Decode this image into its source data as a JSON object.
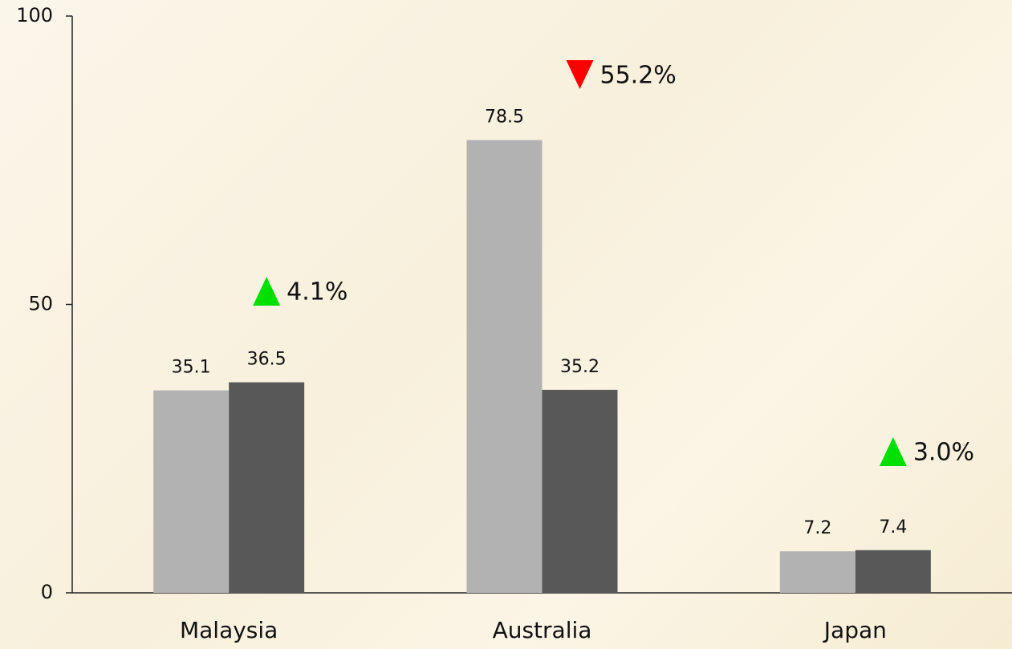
{
  "chart_data": {
    "type": "bar",
    "categories": [
      "Malaysia",
      "Australia",
      "Japan"
    ],
    "series": [
      {
        "color": "#b2b2b2",
        "values": [
          35.1,
          78.5,
          7.2
        ]
      },
      {
        "color": "#585858",
        "values": [
          36.5,
          35.2,
          7.4
        ]
      }
    ],
    "ylim": [
      0,
      100
    ],
    "yticks": [
      0,
      50,
      100
    ],
    "grid": false,
    "annotations": [
      {
        "text": "4.1%",
        "direction": "up",
        "color": "#00e000"
      },
      {
        "text": "55.2%",
        "direction": "down",
        "color": "#ff0000"
      },
      {
        "text": "3.0%",
        "direction": "up",
        "color": "#00e000"
      }
    ]
  }
}
